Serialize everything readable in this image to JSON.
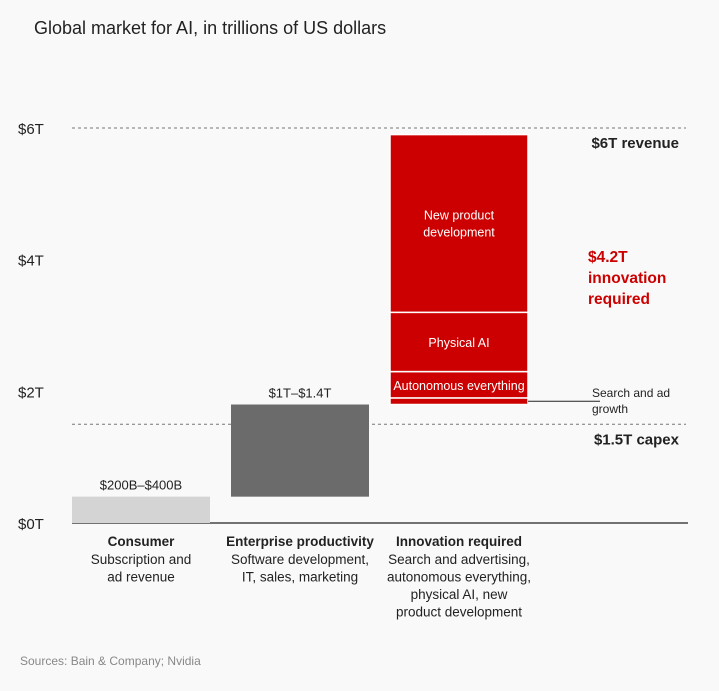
{
  "title": "Global market for AI, in trillions of US dollars",
  "source": "Sources: Bain & Company; Nvidia",
  "colors": {
    "red": "#cc0000",
    "dark_gray": "#6b6b6b",
    "light_gray": "#d4d4d4",
    "axis": "#222222",
    "dashed": "#777777"
  },
  "chart_data": {
    "type": "bar",
    "ylim": [
      0,
      6
    ],
    "y_ticks": [
      {
        "value": 0,
        "label": "$0T"
      },
      {
        "value": 2,
        "label": "$2T"
      },
      {
        "value": 4,
        "label": "$4T"
      },
      {
        "value": 6,
        "label": "$6T"
      }
    ],
    "categories": [
      {
        "name": "Consumer",
        "desc": [
          "Subscription and",
          "ad revenue"
        ]
      },
      {
        "name": "Enterprise productivity",
        "desc": [
          "Software development,",
          "IT, sales, marketing"
        ]
      },
      {
        "name": "Innovation required",
        "desc": [
          "Search and advertising,",
          "autonomous everything,",
          "physical AI, new",
          "product development"
        ]
      }
    ],
    "bars": [
      {
        "category": "Consumer",
        "bottom": 0.0,
        "top": 0.4,
        "value_label": "$200B–$400B",
        "color": "#d4d4d4"
      },
      {
        "category": "Enterprise productivity",
        "bottom": 0.4,
        "top": 1.8,
        "value_label": "$1T–$1.4T",
        "color": "#6b6b6b"
      }
    ],
    "stacked_segments": [
      {
        "label": "Search and ad growth",
        "bottom": 1.8,
        "top": 1.9,
        "color": "#cc0000",
        "label_outside": true
      },
      {
        "label": "Autonomous everything",
        "bottom": 1.9,
        "top": 2.3,
        "color": "#cc0000"
      },
      {
        "label": "Physical AI",
        "bottom": 2.3,
        "top": 3.2,
        "color": "#cc0000"
      },
      {
        "label": "New product development",
        "bottom": 3.2,
        "top": 5.9,
        "color": "#cc0000"
      }
    ],
    "reference_lines": [
      {
        "value": 6.0,
        "label": "$6T revenue",
        "color": "#222222"
      },
      {
        "value": 1.5,
        "label": "$1.5T capex",
        "color": "#222222"
      }
    ],
    "annotations": [
      {
        "text": "$4.2T innovation required",
        "color": "#cc0000"
      }
    ]
  }
}
